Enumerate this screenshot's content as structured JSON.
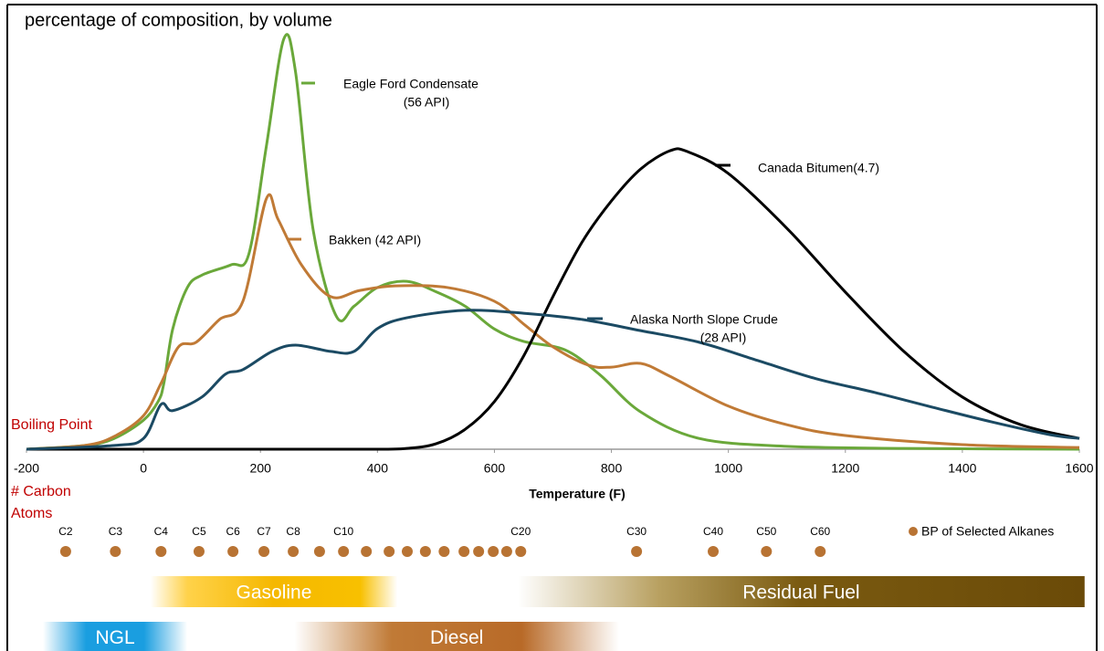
{
  "chart_data": {
    "type": "line",
    "title": "percentage of composition, by volume",
    "x_label": "Temperature (F)",
    "boiling_point_label": "Boiling Point",
    "carbon_label": [
      "# Carbon",
      "Atoms"
    ],
    "xlim": [
      -200,
      1600
    ],
    "xticks": [
      -200,
      0,
      200,
      400,
      600,
      800,
      1000,
      1200,
      1400,
      1600
    ],
    "ylim": [
      0,
      100
    ],
    "series": [
      {
        "name": "Eagle Ford Condensate",
        "api_label": "(56 API)",
        "color": "#6aa83a",
        "x": [
          -200,
          -100,
          -50,
          0,
          25,
          35,
          50,
          75,
          100,
          150,
          180,
          210,
          240,
          260,
          290,
          330,
          360,
          400,
          450,
          500,
          550,
          600,
          650,
          720,
          780,
          850,
          950,
          1100,
          1300,
          1600
        ],
        "values": [
          0,
          0.9,
          2.6,
          7,
          11.5,
          16,
          29,
          39,
          42,
          44.5,
          47,
          73,
          99,
          91,
          53,
          32,
          34.5,
          39,
          40.5,
          38,
          34.5,
          29,
          26,
          24,
          18,
          9,
          2.6,
          0.7,
          0.2,
          0
        ]
      },
      {
        "name": "Bakken (42 API)",
        "color": "#c07a36",
        "x": [
          -200,
          -100,
          -50,
          0,
          30,
          60,
          90,
          130,
          170,
          210,
          230,
          270,
          320,
          370,
          430,
          520,
          600,
          650,
          700,
          760,
          800,
          850,
          900,
          1000,
          1100,
          1200,
          1400,
          1600
        ],
        "values": [
          0,
          0.9,
          3.1,
          8.1,
          15.9,
          24.7,
          25.8,
          31.3,
          35.7,
          60.4,
          55.5,
          44.5,
          36.8,
          38.3,
          39.4,
          39,
          35.7,
          30.2,
          24.7,
          20.3,
          19.8,
          20.7,
          17.6,
          10.4,
          5.9,
          3.3,
          1.1,
          0.4
        ]
      },
      {
        "name": "Canada Bitumen(4.7)",
        "color": "#000000",
        "x": [
          -200,
          0,
          200,
          400,
          450,
          500,
          550,
          600,
          650,
          700,
          750,
          800,
          850,
          900,
          930,
          1000,
          1100,
          1200,
          1300,
          1400,
          1500,
          1600
        ],
        "values": [
          0,
          0,
          0,
          0,
          0.2,
          1.3,
          4.8,
          11.5,
          22.5,
          36.8,
          50,
          59.9,
          67.6,
          72,
          71.8,
          66.5,
          53.3,
          37.9,
          23.6,
          12.6,
          5.9,
          2.6
        ]
      },
      {
        "name": "Alaska North Slope Crude",
        "api_label": "(28 API)",
        "color": "#1b4a63",
        "x": [
          -200,
          -50,
          0,
          30,
          50,
          100,
          140,
          170,
          220,
          260,
          320,
          360,
          400,
          450,
          550,
          650,
          750,
          850,
          950,
          1050,
          1150,
          1250,
          1350,
          1450,
          1550,
          1600
        ],
        "values": [
          0,
          0.9,
          2.6,
          10.8,
          9.3,
          12.6,
          18.1,
          19.2,
          23.6,
          25.1,
          23.6,
          23.6,
          29.1,
          31.7,
          33.5,
          32.8,
          31.3,
          28.6,
          25.8,
          21.4,
          17,
          13.7,
          10.1,
          6.6,
          3.5,
          2.6
        ]
      }
    ],
    "alkanes": {
      "name": "BP of Selected Alkanes",
      "color": "#b87333",
      "labels": [
        "C2",
        "C3",
        "C4",
        "C5",
        "C6",
        "C7",
        "C8",
        null,
        "C10",
        null,
        null,
        null,
        null,
        null,
        null,
        null,
        null,
        null,
        "C20",
        "C30",
        "C40",
        "C50",
        "C60"
      ],
      "x": [
        -133,
        -48,
        30,
        95,
        153,
        206,
        256,
        301,
        342,
        381,
        420,
        451,
        482,
        514,
        548,
        573,
        598,
        621,
        645,
        843,
        974,
        1065,
        1157
      ]
    },
    "fuels": [
      {
        "label": "Gasoline",
        "range": [
          12,
          434
        ],
        "row": 0
      },
      {
        "label": "Residual Fuel",
        "range": [
          640,
          1609
        ],
        "row": 0
      },
      {
        "label": "NGL",
        "range": [
          -172,
          75
        ],
        "row": 1
      },
      {
        "label": "Diesel",
        "range": [
          258,
          813
        ],
        "row": 1
      }
    ]
  }
}
